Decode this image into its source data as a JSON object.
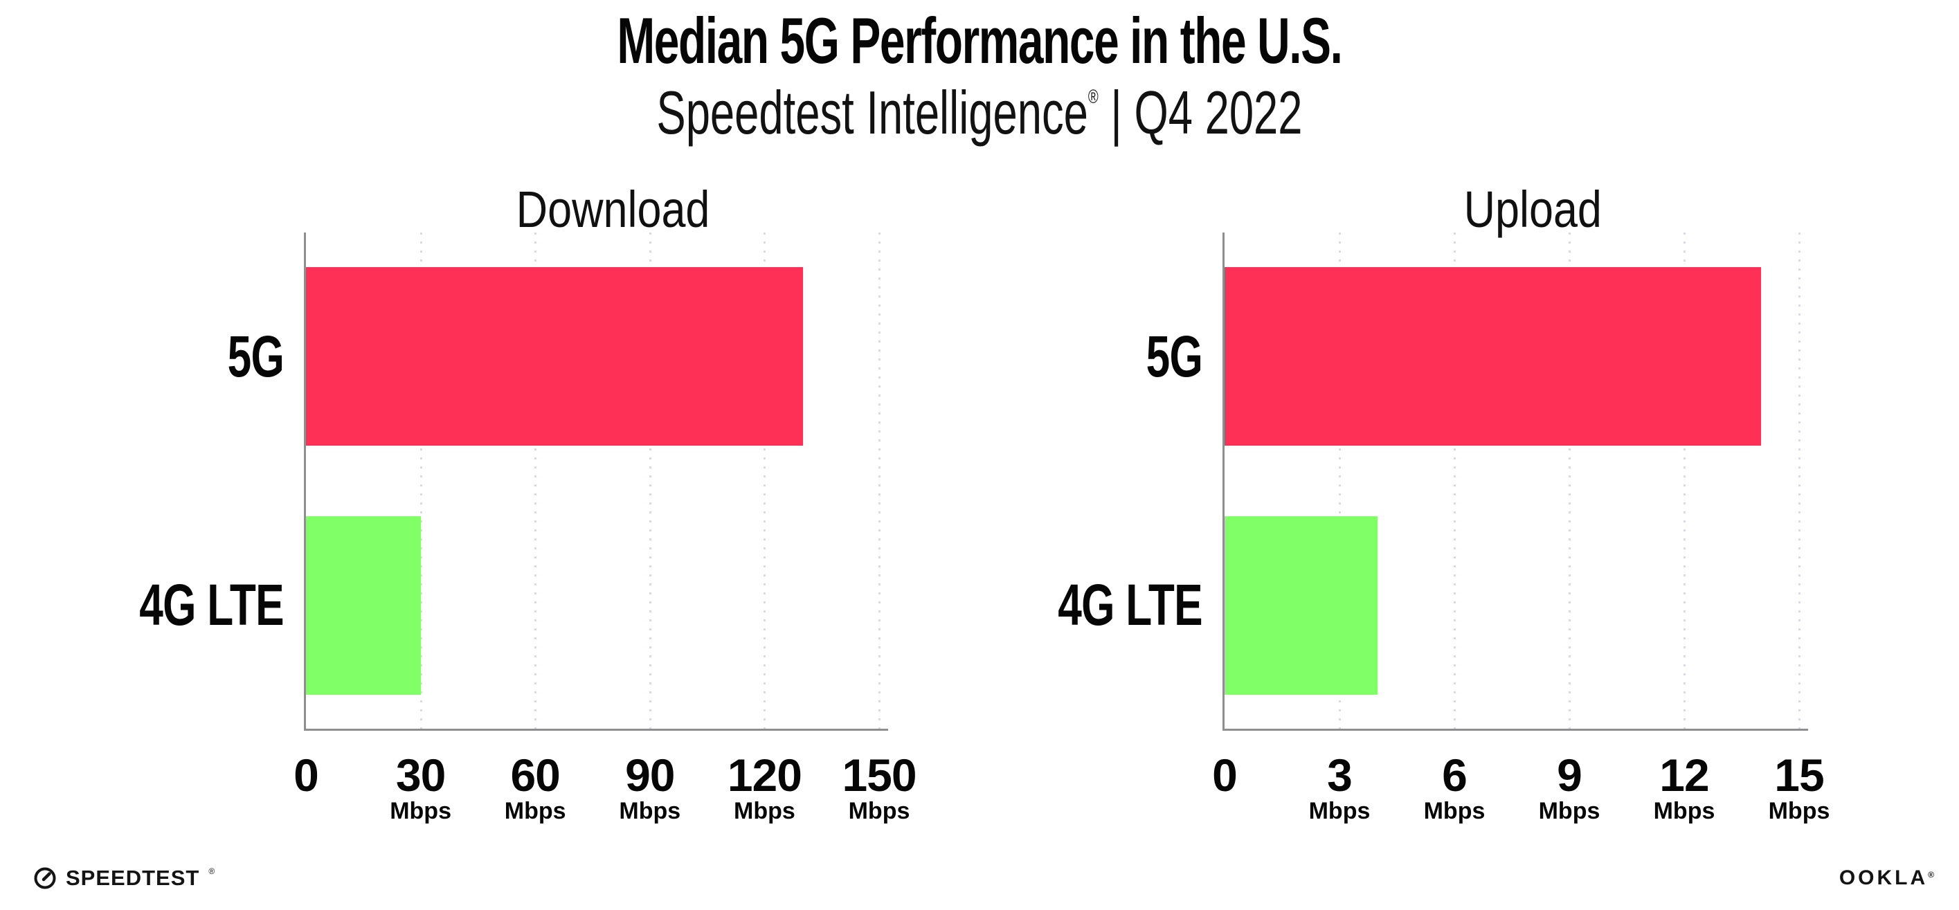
{
  "header": {
    "title": "Median 5G Performance in the U.S.",
    "subtitle_brand": "Speedtest Intelligence",
    "subtitle_reg": "®",
    "subtitle_separator": " | ",
    "subtitle_period": "Q4 2022"
  },
  "chart_data": [
    {
      "type": "bar",
      "orientation": "horizontal",
      "title": "Download",
      "categories": [
        "5G",
        "4G LTE"
      ],
      "values": [
        130,
        30
      ],
      "value_unit": "Mbps",
      "xlim": [
        0,
        150
      ],
      "xticks": [
        0,
        30,
        60,
        90,
        120,
        150
      ],
      "tick_unit_label": "Mbps",
      "bar_colors": [
        "#FF3056",
        "#80FF66"
      ],
      "grid": "dotted-vertical-gridlines",
      "legend": "none"
    },
    {
      "type": "bar",
      "orientation": "horizontal",
      "title": "Upload",
      "categories": [
        "5G",
        "4G LTE"
      ],
      "values": [
        14,
        4
      ],
      "value_unit": "Mbps",
      "xlim": [
        0,
        15
      ],
      "xticks": [
        0,
        3,
        6,
        9,
        12,
        15
      ],
      "tick_unit_label": "Mbps",
      "bar_colors": [
        "#FF3056",
        "#80FF66"
      ],
      "grid": "dotted-vertical-gridlines",
      "legend": "none"
    }
  ],
  "footer": {
    "speedtest_logo_text": "SPEEDTEST",
    "speedtest_reg": "®",
    "ookla_logo_text": "OOKLA",
    "ookla_reg": "®"
  },
  "colors": {
    "bar_5g": "#FF3056",
    "bar_4g_lte": "#80FF66",
    "axis_line": "#8f8f8f",
    "grid_dot": "#d9d9e4",
    "text": "#060606",
    "background": "#ffffff"
  }
}
